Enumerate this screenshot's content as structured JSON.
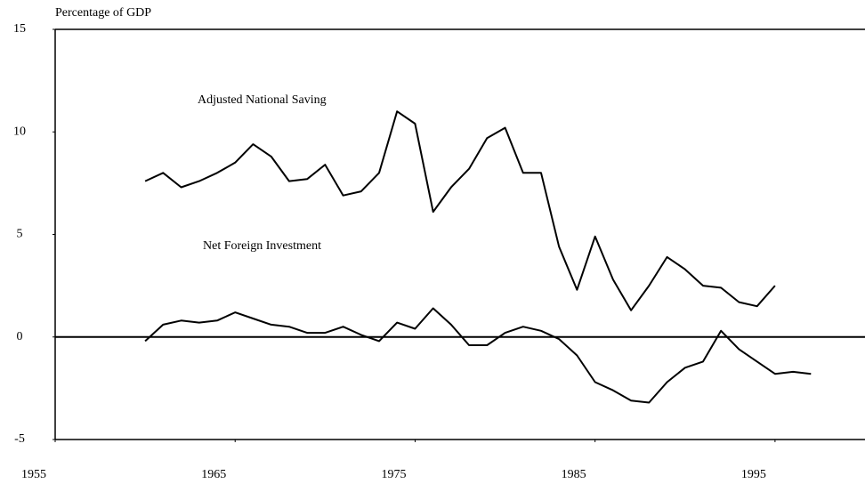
{
  "chart_data": {
    "type": "line",
    "y_label": "Percentage of GDP",
    "annotations": [
      "Adjusted National Saving",
      "Net Foreign Investment"
    ],
    "series": [
      {
        "name": "Adjusted National Saving",
        "color": "#000000",
        "x": [
          1960,
          1961,
          1962,
          1963,
          1964,
          1965,
          1966,
          1967,
          1968,
          1969,
          1970,
          1971,
          1972,
          1973,
          1974,
          1975,
          1976,
          1977,
          1978,
          1979,
          1980,
          1981,
          1982,
          1983,
          1984,
          1985,
          1986,
          1987,
          1988,
          1989,
          1990,
          1991,
          1992,
          1993,
          1994,
          1995
        ],
        "values": [
          7.6,
          8.0,
          7.3,
          7.6,
          8.0,
          8.5,
          9.4,
          8.8,
          7.6,
          7.7,
          8.4,
          6.9,
          7.1,
          8.0,
          11.0,
          10.4,
          6.1,
          7.3,
          8.2,
          9.7,
          10.2,
          8.0,
          8.0,
          4.4,
          2.3,
          4.9,
          2.8,
          1.3,
          2.5,
          3.9,
          3.3,
          2.5,
          2.4,
          1.7,
          1.5,
          2.5
        ]
      },
      {
        "name": "Net Foreign Investment",
        "color": "#000000",
        "x": [
          1960,
          1961,
          1962,
          1963,
          1964,
          1965,
          1966,
          1967,
          1968,
          1969,
          1970,
          1971,
          1972,
          1973,
          1974,
          1975,
          1976,
          1977,
          1978,
          1979,
          1980,
          1981,
          1982,
          1983,
          1984,
          1985,
          1986,
          1987,
          1988,
          1989,
          1990,
          1991,
          1992,
          1993,
          1994,
          1995,
          1996,
          1997
        ],
        "values": [
          -0.2,
          0.6,
          0.8,
          0.7,
          0.8,
          1.2,
          0.9,
          0.6,
          0.5,
          0.2,
          0.2,
          0.5,
          0.1,
          -0.2,
          0.7,
          0.4,
          1.4,
          0.6,
          -0.4,
          -0.4,
          0.2,
          0.5,
          0.3,
          -0.1,
          -0.9,
          -2.2,
          -2.6,
          -3.1,
          -3.2,
          -2.2,
          -1.5,
          -1.2,
          0.3,
          -0.6,
          -1.2,
          -1.8,
          -1.7,
          -1.8
        ]
      }
    ],
    "xlim": [
      1955,
      2000
    ],
    "xticks": [
      1955,
      1965,
      1975,
      1985,
      1995
    ],
    "ylim": [
      -5,
      15
    ],
    "yticks": [
      -5,
      0,
      5,
      10,
      15
    ]
  }
}
